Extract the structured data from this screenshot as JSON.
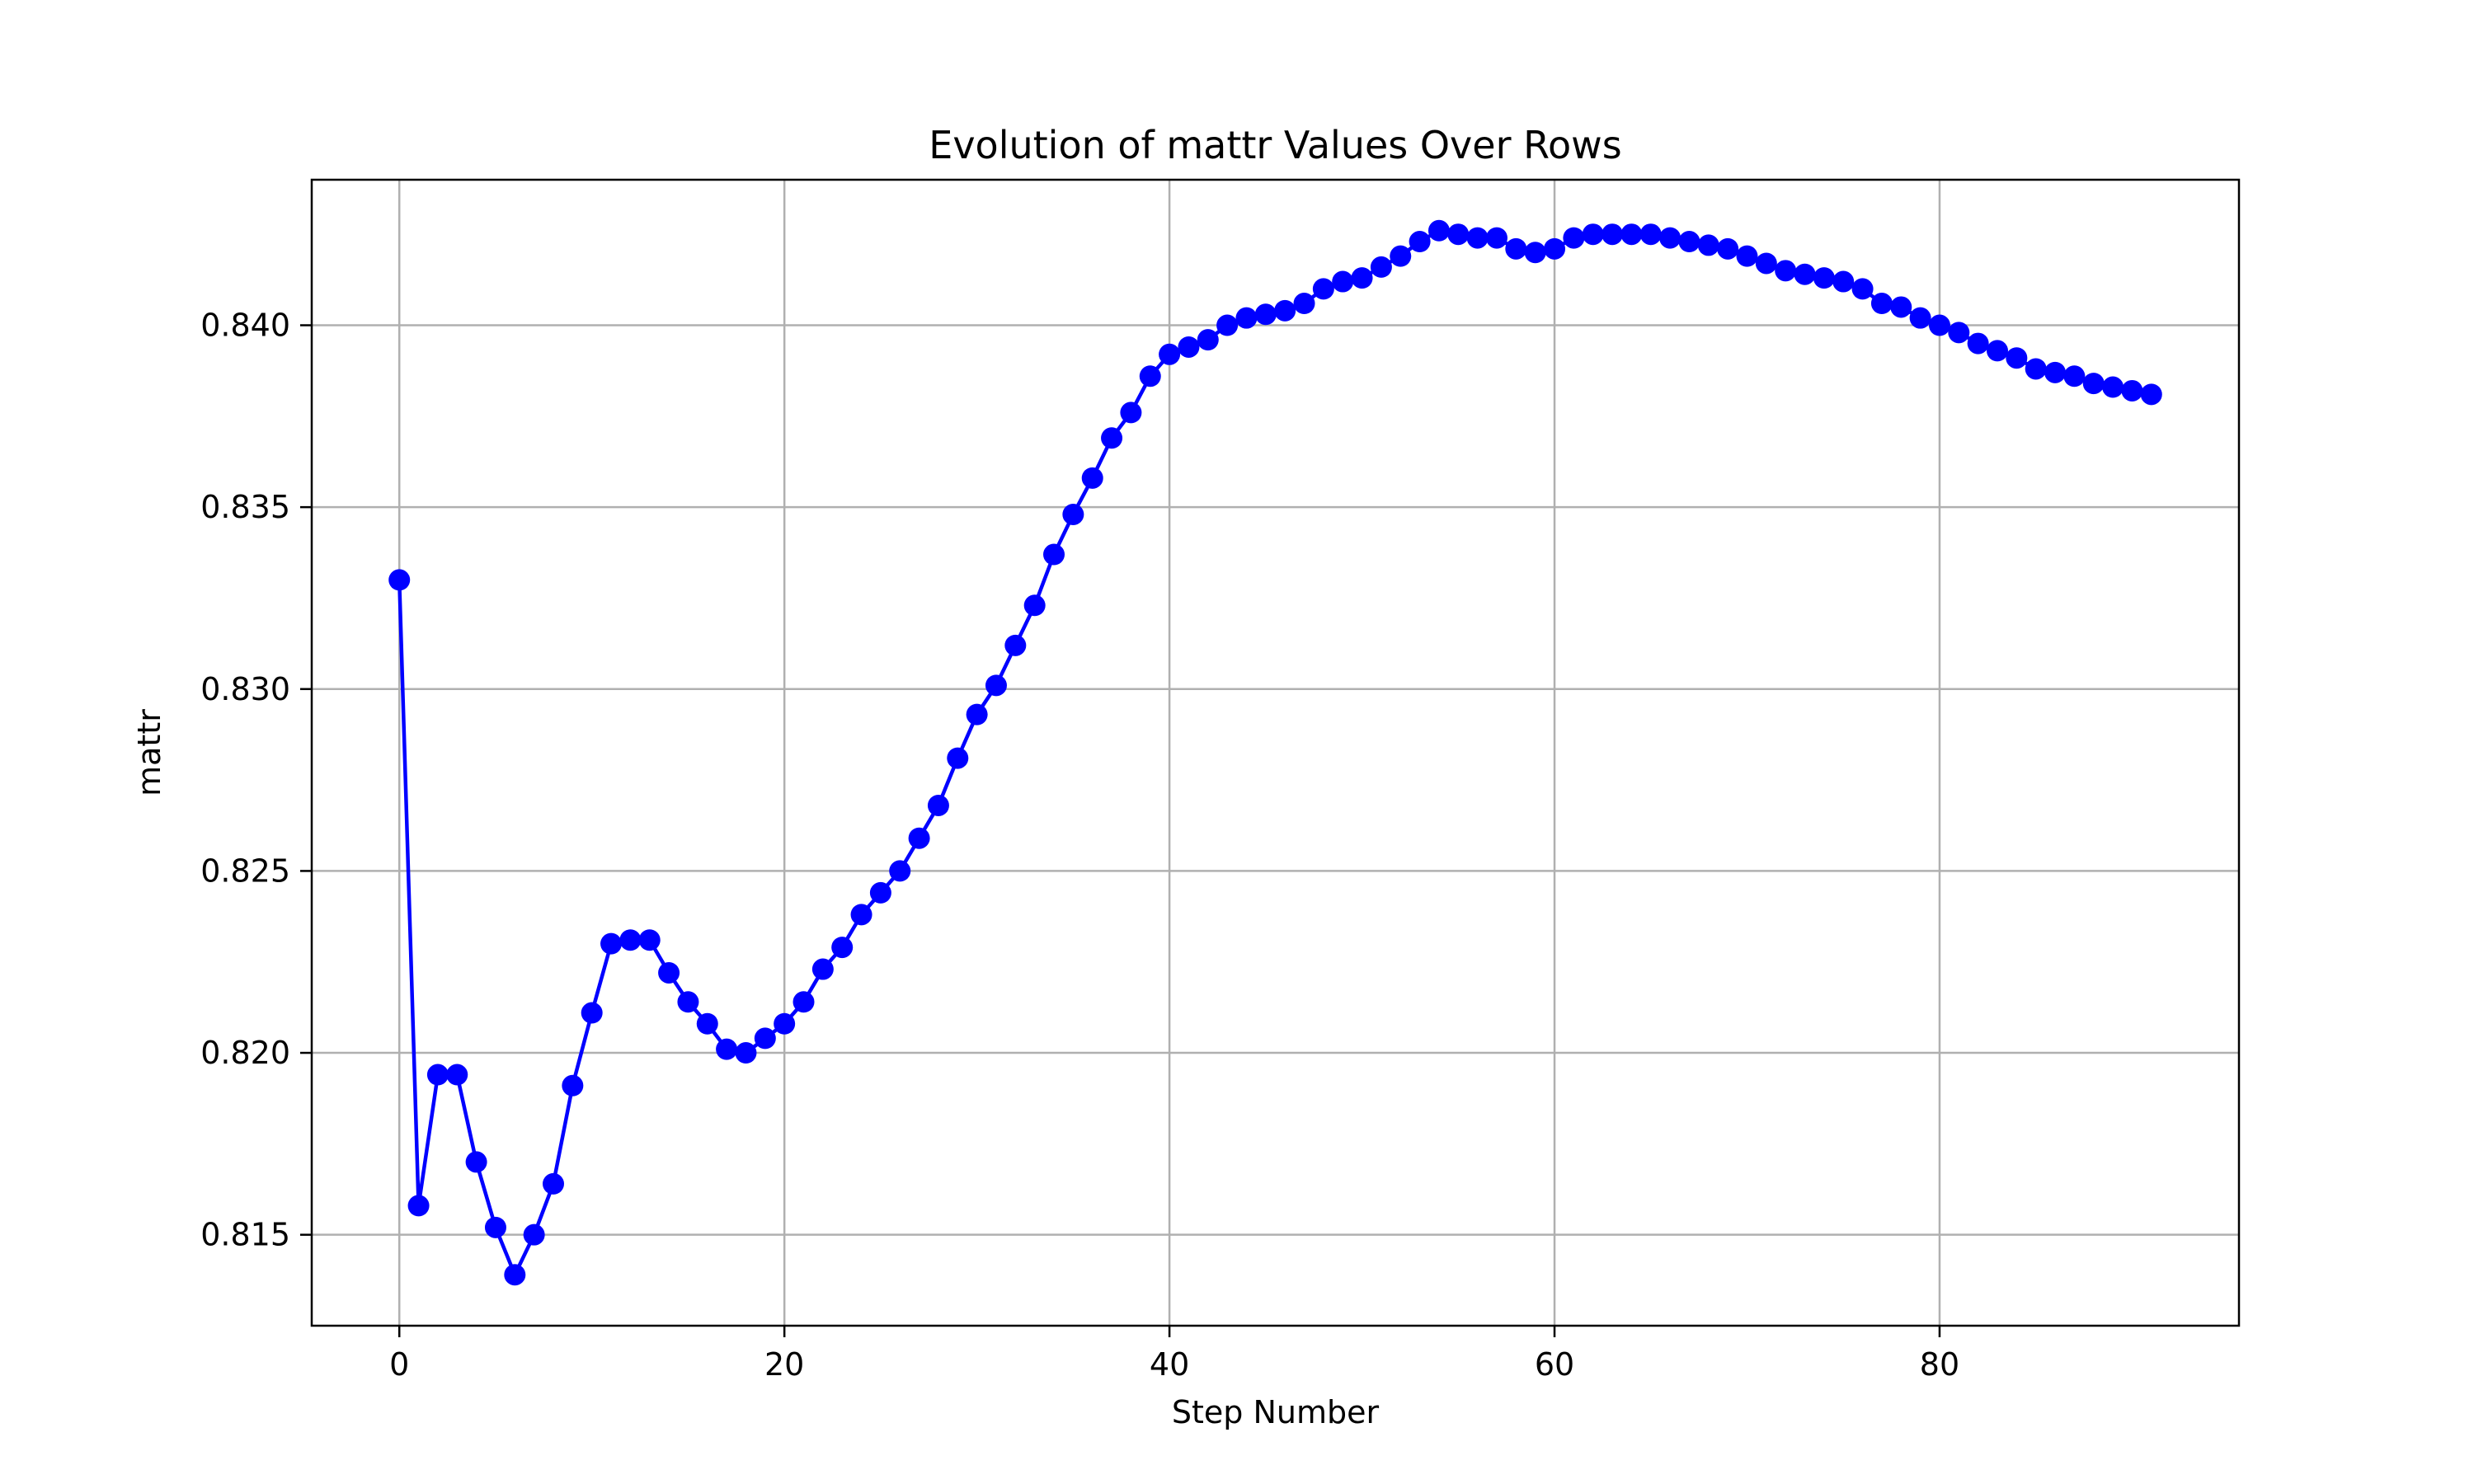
{
  "chart_data": {
    "type": "line",
    "title": "Evolution of mattr Values Over Rows",
    "xlabel": "Step Number",
    "ylabel": "mattr",
    "xlim": [
      -4.55,
      95.55
    ],
    "ylim": [
      0.8125,
      0.844
    ],
    "xticks": [
      0,
      20,
      40,
      60,
      80
    ],
    "xtick_labels": [
      "0",
      "20",
      "40",
      "60",
      "80"
    ],
    "yticks": [
      0.815,
      0.82,
      0.825,
      0.83,
      0.835,
      0.84
    ],
    "ytick_labels": [
      "0.815",
      "0.820",
      "0.825",
      "0.830",
      "0.835",
      "0.840"
    ],
    "grid": true,
    "marker": "circle",
    "color": "#0000ff",
    "series": [
      {
        "x": [
          0,
          1,
          2,
          3,
          4,
          5,
          6,
          7,
          8,
          9,
          10,
          11,
          12,
          13,
          14,
          15,
          16,
          17,
          18,
          19,
          20,
          21,
          22,
          23,
          24,
          25,
          26,
          27,
          28,
          29,
          30,
          31,
          32,
          33,
          34,
          35,
          36,
          37,
          38,
          39,
          40,
          41,
          42,
          43,
          44,
          45,
          46,
          47,
          48,
          49,
          50,
          51,
          52,
          53,
          54,
          55,
          56,
          57,
          58,
          59,
          60,
          61,
          62,
          63,
          64,
          65,
          66,
          67,
          68,
          69,
          70,
          71,
          72,
          73,
          74,
          75,
          76,
          77,
          78,
          79,
          80,
          81,
          82,
          83,
          84,
          85,
          86,
          87,
          88,
          89,
          90,
          91
        ],
        "values": [
          0.833,
          0.8158,
          0.8194,
          0.8194,
          0.817,
          0.8152,
          0.8139,
          0.815,
          0.8164,
          0.8191,
          0.8211,
          0.823,
          0.8231,
          0.8231,
          0.8222,
          0.8214,
          0.8208,
          0.8201,
          0.82,
          0.8204,
          0.8208,
          0.8214,
          0.8223,
          0.8229,
          0.8238,
          0.8244,
          0.825,
          0.8259,
          0.8268,
          0.8281,
          0.8293,
          0.8301,
          0.8312,
          0.8323,
          0.8337,
          0.8348,
          0.8358,
          0.8369,
          0.8376,
          0.8386,
          0.8392,
          0.8394,
          0.8396,
          0.84,
          0.8402,
          0.8403,
          0.8404,
          0.8406,
          0.841,
          0.8412,
          0.8413,
          0.8416,
          0.8419,
          0.8423,
          0.8426,
          0.8425,
          0.8424,
          0.8424,
          0.8421,
          0.842,
          0.8421,
          0.8424,
          0.8425,
          0.8425,
          0.8425,
          0.8425,
          0.8424,
          0.8423,
          0.8422,
          0.8421,
          0.8419,
          0.8417,
          0.8415,
          0.8414,
          0.8413,
          0.8412,
          0.841,
          0.8406,
          0.8405,
          0.8402,
          0.84,
          0.8398,
          0.8395,
          0.8393,
          0.8391,
          0.8388,
          0.8387,
          0.8386,
          0.8384,
          0.8383,
          0.8382,
          0.8381
        ]
      }
    ]
  }
}
